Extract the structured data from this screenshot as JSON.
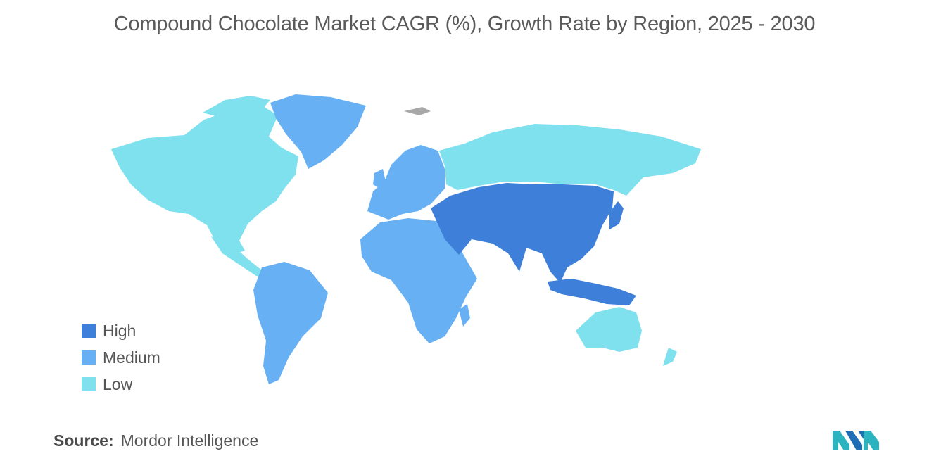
{
  "title": "Compound Chocolate Market CAGR (%), Growth Rate by Region, 2025 - 2030",
  "legend": {
    "items": [
      {
        "label": "High",
        "color": "#3d7fd9"
      },
      {
        "label": "Medium",
        "color": "#67b0f3"
      },
      {
        "label": "Low",
        "color": "#7fe0ee"
      }
    ]
  },
  "colors": {
    "high": "#3d7fd9",
    "medium": "#67b0f3",
    "low": "#7fe0ee",
    "no_data": "#a8a8a8"
  },
  "regions": [
    {
      "name": "North America",
      "level": "Low"
    },
    {
      "name": "South America",
      "level": "Medium"
    },
    {
      "name": "Europe",
      "level": "Medium"
    },
    {
      "name": "Africa",
      "level": "Medium"
    },
    {
      "name": "Middle East",
      "level": "High"
    },
    {
      "name": "Asia-Pacific",
      "level": "High"
    },
    {
      "name": "Russia",
      "level": "Low"
    },
    {
      "name": "Australia and New Zealand",
      "level": "Low"
    }
  ],
  "source": {
    "label": "Source:",
    "value": "Mordor Intelligence"
  },
  "logo_icon": "mordor-intelligence-logo-icon"
}
